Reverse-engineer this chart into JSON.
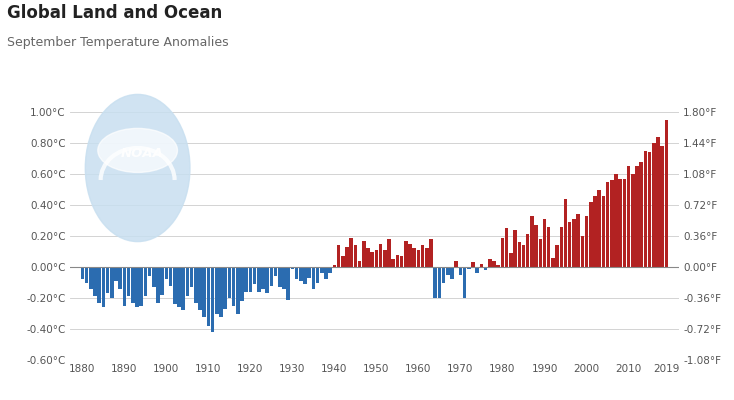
{
  "title": "Global Land and Ocean",
  "subtitle": "September Temperature Anomalies",
  "years": [
    1880,
    1881,
    1882,
    1883,
    1884,
    1885,
    1886,
    1887,
    1888,
    1889,
    1890,
    1891,
    1892,
    1893,
    1894,
    1895,
    1896,
    1897,
    1898,
    1899,
    1900,
    1901,
    1902,
    1903,
    1904,
    1905,
    1906,
    1907,
    1908,
    1909,
    1910,
    1911,
    1912,
    1913,
    1914,
    1915,
    1916,
    1917,
    1918,
    1919,
    1920,
    1921,
    1922,
    1923,
    1924,
    1925,
    1926,
    1927,
    1928,
    1929,
    1930,
    1931,
    1932,
    1933,
    1934,
    1935,
    1936,
    1937,
    1938,
    1939,
    1940,
    1941,
    1942,
    1943,
    1944,
    1945,
    1946,
    1947,
    1948,
    1949,
    1950,
    1951,
    1952,
    1953,
    1954,
    1955,
    1956,
    1957,
    1958,
    1959,
    1960,
    1961,
    1962,
    1963,
    1964,
    1965,
    1966,
    1967,
    1968,
    1969,
    1970,
    1971,
    1972,
    1973,
    1974,
    1975,
    1976,
    1977,
    1978,
    1979,
    1980,
    1981,
    1982,
    1983,
    1984,
    1985,
    1986,
    1987,
    1988,
    1989,
    1990,
    1991,
    1992,
    1993,
    1994,
    1995,
    1996,
    1997,
    1998,
    1999,
    2000,
    2001,
    2002,
    2003,
    2004,
    2005,
    2006,
    2007,
    2008,
    2009,
    2010,
    2011,
    2012,
    2013,
    2014,
    2015,
    2016,
    2017,
    2018,
    2019
  ],
  "anomalies": [
    -0.08,
    -0.1,
    -0.14,
    -0.19,
    -0.23,
    -0.26,
    -0.17,
    -0.2,
    -0.09,
    -0.14,
    -0.25,
    -0.19,
    -0.23,
    -0.26,
    -0.25,
    -0.19,
    -0.06,
    -0.13,
    -0.23,
    -0.18,
    -0.08,
    -0.12,
    -0.24,
    -0.26,
    -0.28,
    -0.19,
    -0.13,
    -0.23,
    -0.28,
    -0.32,
    -0.38,
    -0.42,
    -0.3,
    -0.32,
    -0.27,
    -0.2,
    -0.25,
    -0.3,
    -0.22,
    -0.16,
    -0.16,
    -0.11,
    -0.16,
    -0.14,
    -0.17,
    -0.12,
    -0.06,
    -0.13,
    -0.14,
    -0.21,
    -0.01,
    -0.08,
    -0.09,
    -0.11,
    -0.07,
    -0.14,
    -0.1,
    -0.04,
    -0.08,
    -0.04,
    0.01,
    0.14,
    0.07,
    0.13,
    0.19,
    0.14,
    0.04,
    0.17,
    0.12,
    0.1,
    0.11,
    0.15,
    0.11,
    0.18,
    0.05,
    0.08,
    0.07,
    0.17,
    0.15,
    0.12,
    0.11,
    0.14,
    0.12,
    0.18,
    -0.2,
    -0.2,
    -0.1,
    -0.05,
    -0.08,
    0.04,
    -0.05,
    -0.2,
    -0.01,
    0.03,
    -0.04,
    0.02,
    -0.02,
    0.05,
    0.04,
    0.01,
    0.19,
    0.25,
    0.09,
    0.24,
    0.16,
    0.14,
    0.21,
    0.33,
    0.27,
    0.18,
    0.31,
    0.26,
    0.06,
    0.14,
    0.26,
    0.44,
    0.29,
    0.31,
    0.34,
    0.2,
    0.33,
    0.42,
    0.46,
    0.5,
    0.46,
    0.55,
    0.56,
    0.6,
    0.57,
    0.57,
    0.65,
    0.6,
    0.65,
    0.68,
    0.75,
    0.74,
    0.8,
    0.84,
    0.78,
    0.95
  ],
  "pos_color": "#b22222",
  "neg_color": "#2b6cb0",
  "bg_color": "#ffffff",
  "grid_color": "#cccccc",
  "ylim_celsius": [
    -0.6,
    1.0
  ],
  "yticks_celsius": [
    -0.6,
    -0.4,
    -0.2,
    0.0,
    0.2,
    0.4,
    0.6,
    0.8,
    1.0
  ],
  "yticks_fahrenheit": [
    -1.08,
    -0.72,
    -0.36,
    0.0,
    0.36,
    0.72,
    1.08,
    1.44,
    1.8
  ],
  "xticks": [
    1880,
    1890,
    1900,
    1910,
    1920,
    1930,
    1940,
    1950,
    1960,
    1970,
    1980,
    1990,
    2000,
    2010,
    2019
  ],
  "title_color": "#222222",
  "subtitle_color": "#666666",
  "tick_color": "#555555",
  "noaa_circle_color": "#c8dff0",
  "noaa_bird_color": "#e8f2f8",
  "noaa_text_color": "#ffffff",
  "figsize": [
    7.34,
    4.0
  ],
  "dpi": 100
}
